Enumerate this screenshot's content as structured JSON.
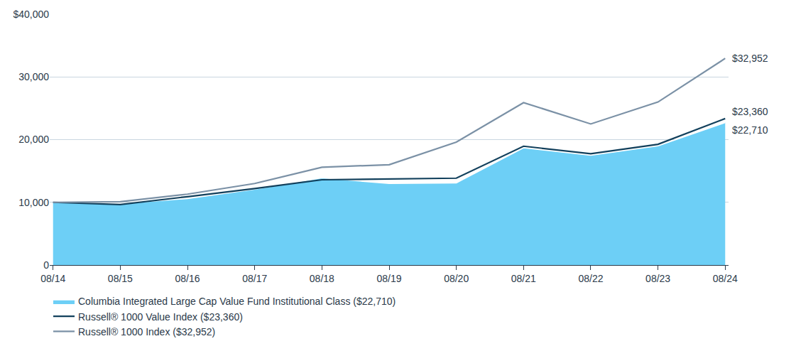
{
  "chart_data": {
    "type": "line",
    "categories": [
      "08/14",
      "08/15",
      "08/16",
      "08/17",
      "08/18",
      "08/19",
      "08/20",
      "08/21",
      "08/22",
      "08/23",
      "08/24"
    ],
    "series": [
      {
        "name": "Columbia Integrated Large Cap Value Fund Institutional Class ($22,710)",
        "type": "area",
        "color": "#6dcff6",
        "values": [
          10000,
          9800,
          10600,
          12100,
          13900,
          13000,
          13100,
          18700,
          17500,
          19000,
          22710
        ],
        "value_labels": [
          null,
          null,
          null,
          null,
          null,
          null,
          null,
          null,
          null,
          null,
          "$22,710"
        ]
      },
      {
        "name": "Russell® 1000 Value Index ($23,360)",
        "type": "line",
        "color": "#12405c",
        "values": [
          10000,
          9650,
          10900,
          12200,
          13600,
          13750,
          13850,
          18950,
          17750,
          19250,
          23360
        ],
        "value_labels": [
          null,
          null,
          null,
          null,
          null,
          null,
          null,
          null,
          null,
          null,
          "$23,360"
        ]
      },
      {
        "name": "Russell® 1000 Index ($32,952)",
        "type": "line",
        "color": "#7b91a6",
        "values": [
          10000,
          10100,
          11300,
          13000,
          15600,
          16000,
          19600,
          25900,
          22500,
          26000,
          32952
        ],
        "value_labels": [
          null,
          null,
          null,
          null,
          null,
          null,
          null,
          null,
          null,
          null,
          "$32,952"
        ]
      }
    ],
    "ylim": [
      0,
      40000
    ],
    "yticks": [
      0,
      {
        "value": 10000,
        "label": "10,000"
      },
      {
        "value": 20000,
        "label": "20,000"
      },
      {
        "value": 30000,
        "label": "30,000"
      },
      {
        "value": 40000,
        "label": "$40,000"
      }
    ],
    "grid": true,
    "legend": "bottom"
  }
}
